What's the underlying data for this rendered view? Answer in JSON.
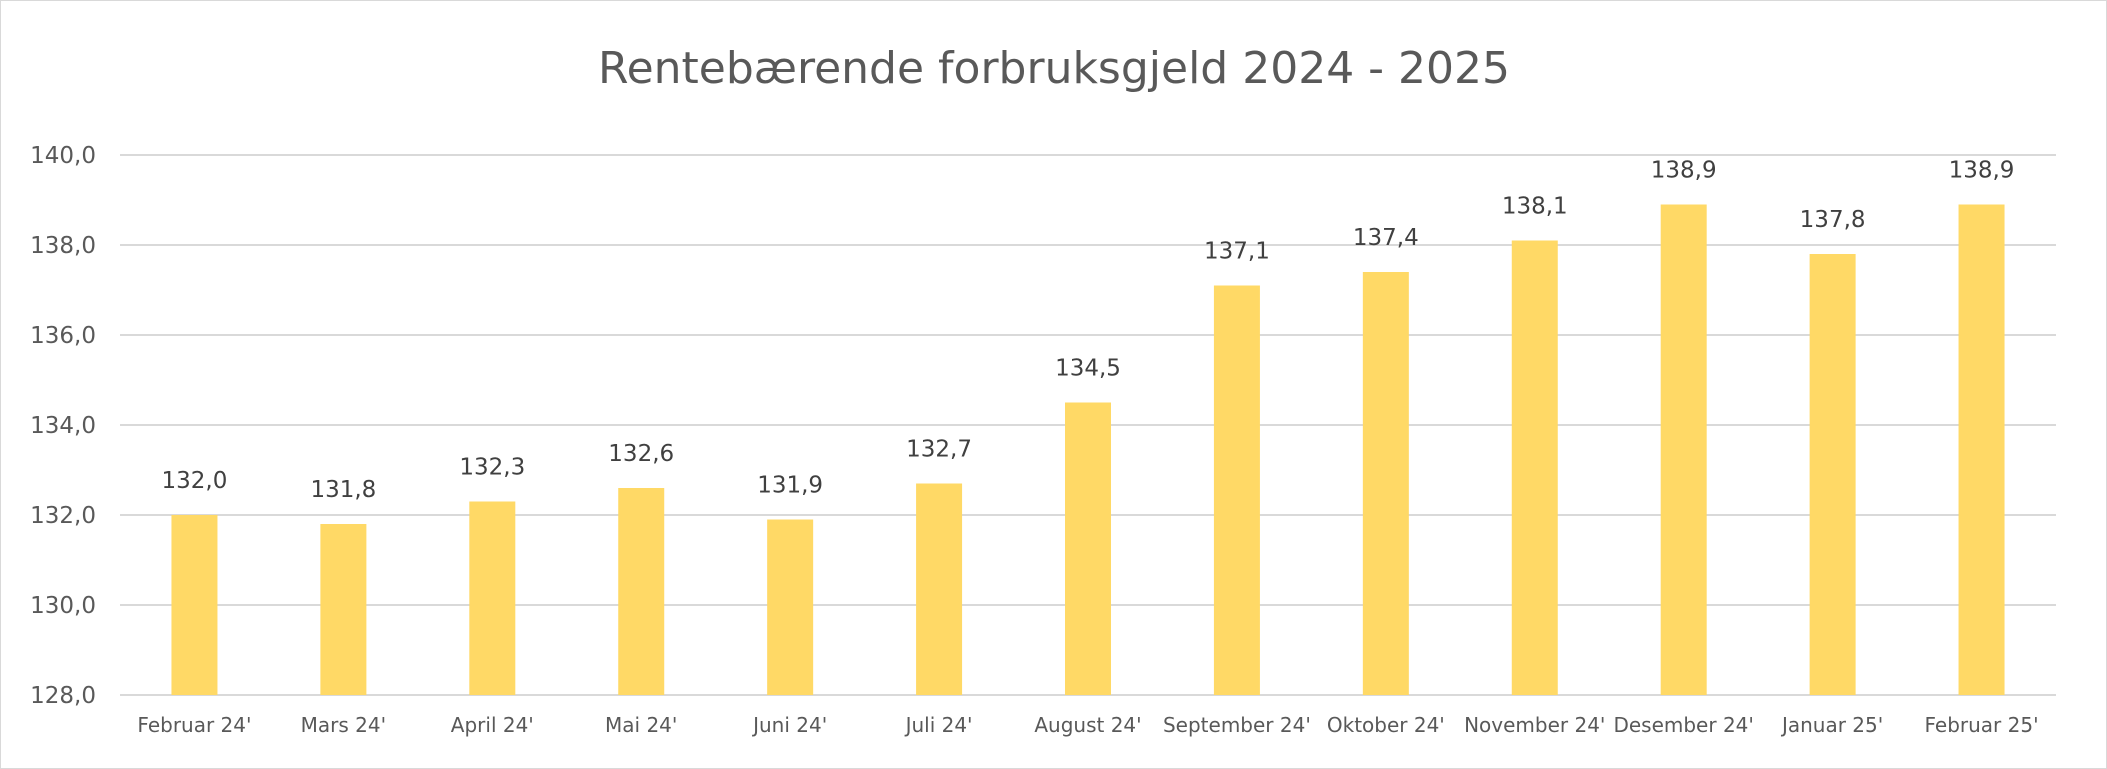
{
  "chart_data": {
    "type": "bar",
    "title": "Rentebærende forbruksgjeld 2024 - 2025",
    "xlabel": "",
    "ylabel": "",
    "categories": [
      "Februar 24'",
      "Mars 24'",
      "April 24'",
      "Mai 24'",
      "Juni 24'",
      "Juli 24'",
      "August 24'",
      "September 24'",
      "Oktober 24'",
      "November 24'",
      "Desember 24'",
      "Januar 25'",
      "Februar 25'"
    ],
    "values": [
      132.0,
      131.8,
      132.3,
      132.6,
      131.9,
      132.7,
      134.5,
      137.1,
      137.4,
      138.1,
      138.9,
      137.8,
      138.9
    ],
    "data_labels": [
      "132,0",
      "131,8",
      "132,3",
      "132,6",
      "131,9",
      "132,7",
      "134,5",
      "137,1",
      "137,4",
      "138,1",
      "138,9",
      "137,8",
      "138,9"
    ],
    "ylim": [
      128,
      140
    ],
    "yticks": [
      128,
      130,
      132,
      134,
      136,
      138,
      140
    ],
    "ytick_labels": [
      "128,0",
      "130,0",
      "132,0",
      "134,0",
      "136,0",
      "138,0",
      "140,0"
    ],
    "grid": true,
    "legend": "none",
    "bar_color": "#FFD966",
    "grid_color": "#D9D9D9",
    "text_color": "#595959"
  }
}
